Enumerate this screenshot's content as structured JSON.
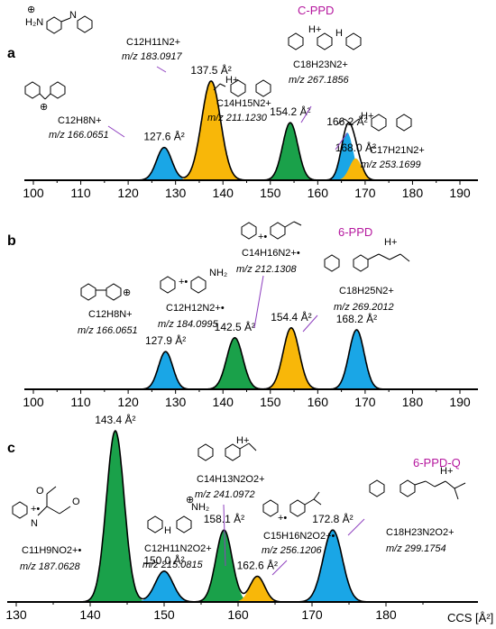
{
  "colors": {
    "blue": "#1aa6e6",
    "orange": "#f8b709",
    "green": "#1aa14a",
    "arrow": "#8e3fbf",
    "name": "#b5179e"
  },
  "chart_data": [
    {
      "type": "area",
      "panel": "a",
      "title": "C-PPD",
      "xticks": [
        100,
        110,
        120,
        130,
        140,
        150,
        160,
        170,
        180,
        190
      ],
      "xlim": [
        100,
        190
      ],
      "peaks": [
        {
          "ccs": 127.6,
          "label": "127.6 Å²",
          "color": "blue",
          "height": 0.33,
          "width": 1.6,
          "formula": "C12H8N+",
          "mz": "m/z 166.0651"
        },
        {
          "ccs": 137.5,
          "label": "137.5 Å²",
          "color": "orange",
          "height": 1.0,
          "width": 2.0,
          "formula": "C12H11N2+",
          "mz": "m/z 183.0917"
        },
        {
          "ccs": 154.2,
          "label": "154.2 Å²",
          "color": "green",
          "height": 0.58,
          "width": 1.6,
          "formula": "C14H15N2+",
          "mz": "m/z 211.1230"
        },
        {
          "ccs": 166.2,
          "label": "166.2 Å²",
          "color": "blue",
          "height": 0.48,
          "width": 1.3,
          "formula": "C18H23N2+",
          "mz": "m/z 267.1856"
        },
        {
          "ccs": 168.0,
          "label": "168.0 Å²",
          "color": "orange",
          "height": 0.22,
          "width": 1.3,
          "formula": "C17H21N2+",
          "mz": "m/z 253.1699"
        }
      ]
    },
    {
      "type": "area",
      "panel": "b",
      "title": "6-PPD",
      "xticks": [
        100,
        110,
        120,
        130,
        140,
        150,
        160,
        170,
        180,
        190
      ],
      "xlim": [
        100,
        190
      ],
      "peaks": [
        {
          "ccs": 127.9,
          "label": "127.9 Å²",
          "color": "blue",
          "height": 0.38,
          "width": 1.5,
          "formula": "C12H8N+",
          "mz": "m/z 166.0651"
        },
        {
          "ccs": 142.5,
          "label": "142.5 Å²",
          "color": "green",
          "height": 0.52,
          "width": 1.7,
          "formula": "C12H12N2+•",
          "mz": "m/z 184.0995"
        },
        {
          "ccs": 154.4,
          "label": "154.4 Å²",
          "color": "orange",
          "height": 0.62,
          "width": 1.7,
          "formula": "C14H16N2+•",
          "mz": "m/z 212.1308"
        },
        {
          "ccs": 168.2,
          "label": "168.2 Å²",
          "color": "blue",
          "height": 0.6,
          "width": 1.6,
          "formula": "C18H25N2+",
          "mz": "m/z 269.2012"
        }
      ]
    },
    {
      "type": "area",
      "panel": "c",
      "title": "6-PPD-Q",
      "xlabel": "CCS [Å²]",
      "xticks": [
        130,
        140,
        150,
        160,
        170,
        180
      ],
      "xlim": [
        130,
        190
      ],
      "peaks": [
        {
          "ccs": 143.4,
          "label": "143.4 Å²",
          "color": "green",
          "height": 1.0,
          "width": 1.2,
          "formula": "C11H9NO2+•",
          "mz": "m/z 187.0628"
        },
        {
          "ccs": 150.0,
          "label": "150.0 Å²",
          "color": "blue",
          "height": 0.18,
          "width": 1.2,
          "formula": "C12H11N2O2+",
          "mz": "m/z 215.0815"
        },
        {
          "ccs": 158.1,
          "label": "158.1 Å²",
          "color": "green",
          "height": 0.42,
          "width": 1.1,
          "formula": "C14H13N2O2+",
          "mz": "m/z 241.0972"
        },
        {
          "ccs": 162.6,
          "label": "162.6 Å²",
          "color": "orange",
          "height": 0.15,
          "width": 1.0,
          "formula": "C15H16N2O2+•",
          "mz": "m/z 256.1206"
        },
        {
          "ccs": 172.8,
          "label": "172.8 Å²",
          "color": "blue",
          "height": 0.42,
          "width": 1.3,
          "formula": "C18H23N2O2+",
          "mz": "m/z 299.1754"
        }
      ]
    }
  ]
}
